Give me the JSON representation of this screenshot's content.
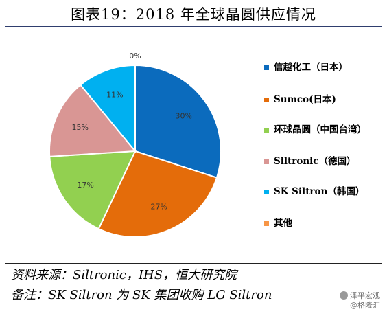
{
  "title": "图表19：2018 年全球晶圆供应情况",
  "chart_data": {
    "type": "pie",
    "title": "图表19：2018 年全球晶圆供应情况",
    "slices": [
      {
        "label": "信越化工（日本）",
        "value": 30,
        "display": "30%",
        "color": "#0b6bbd"
      },
      {
        "label": "Sumco(日本)",
        "value": 27,
        "display": "27%",
        "color": "#e46c0a"
      },
      {
        "label": "环球晶圆（中国台湾）",
        "value": 17,
        "display": "17%",
        "color": "#92d050"
      },
      {
        "label": "Siltronic（德国）",
        "value": 15,
        "display": "15%",
        "color": "#d99694"
      },
      {
        "label": "SK Siltron（韩国）",
        "value": 11,
        "display": "11%",
        "color": "#00b0f0"
      },
      {
        "label": "其他",
        "value": 0,
        "display": "0%",
        "color": "#f79646"
      }
    ],
    "legend_position": "right"
  },
  "notes": {
    "source": "资料来源：Siltronic，IHS，恒大研究院",
    "remark": "备注：SK Siltron 为 SK 集团收购 LG Siltron"
  },
  "watermark": {
    "line1": "泽平宏观",
    "line2": "@格隆汇"
  }
}
